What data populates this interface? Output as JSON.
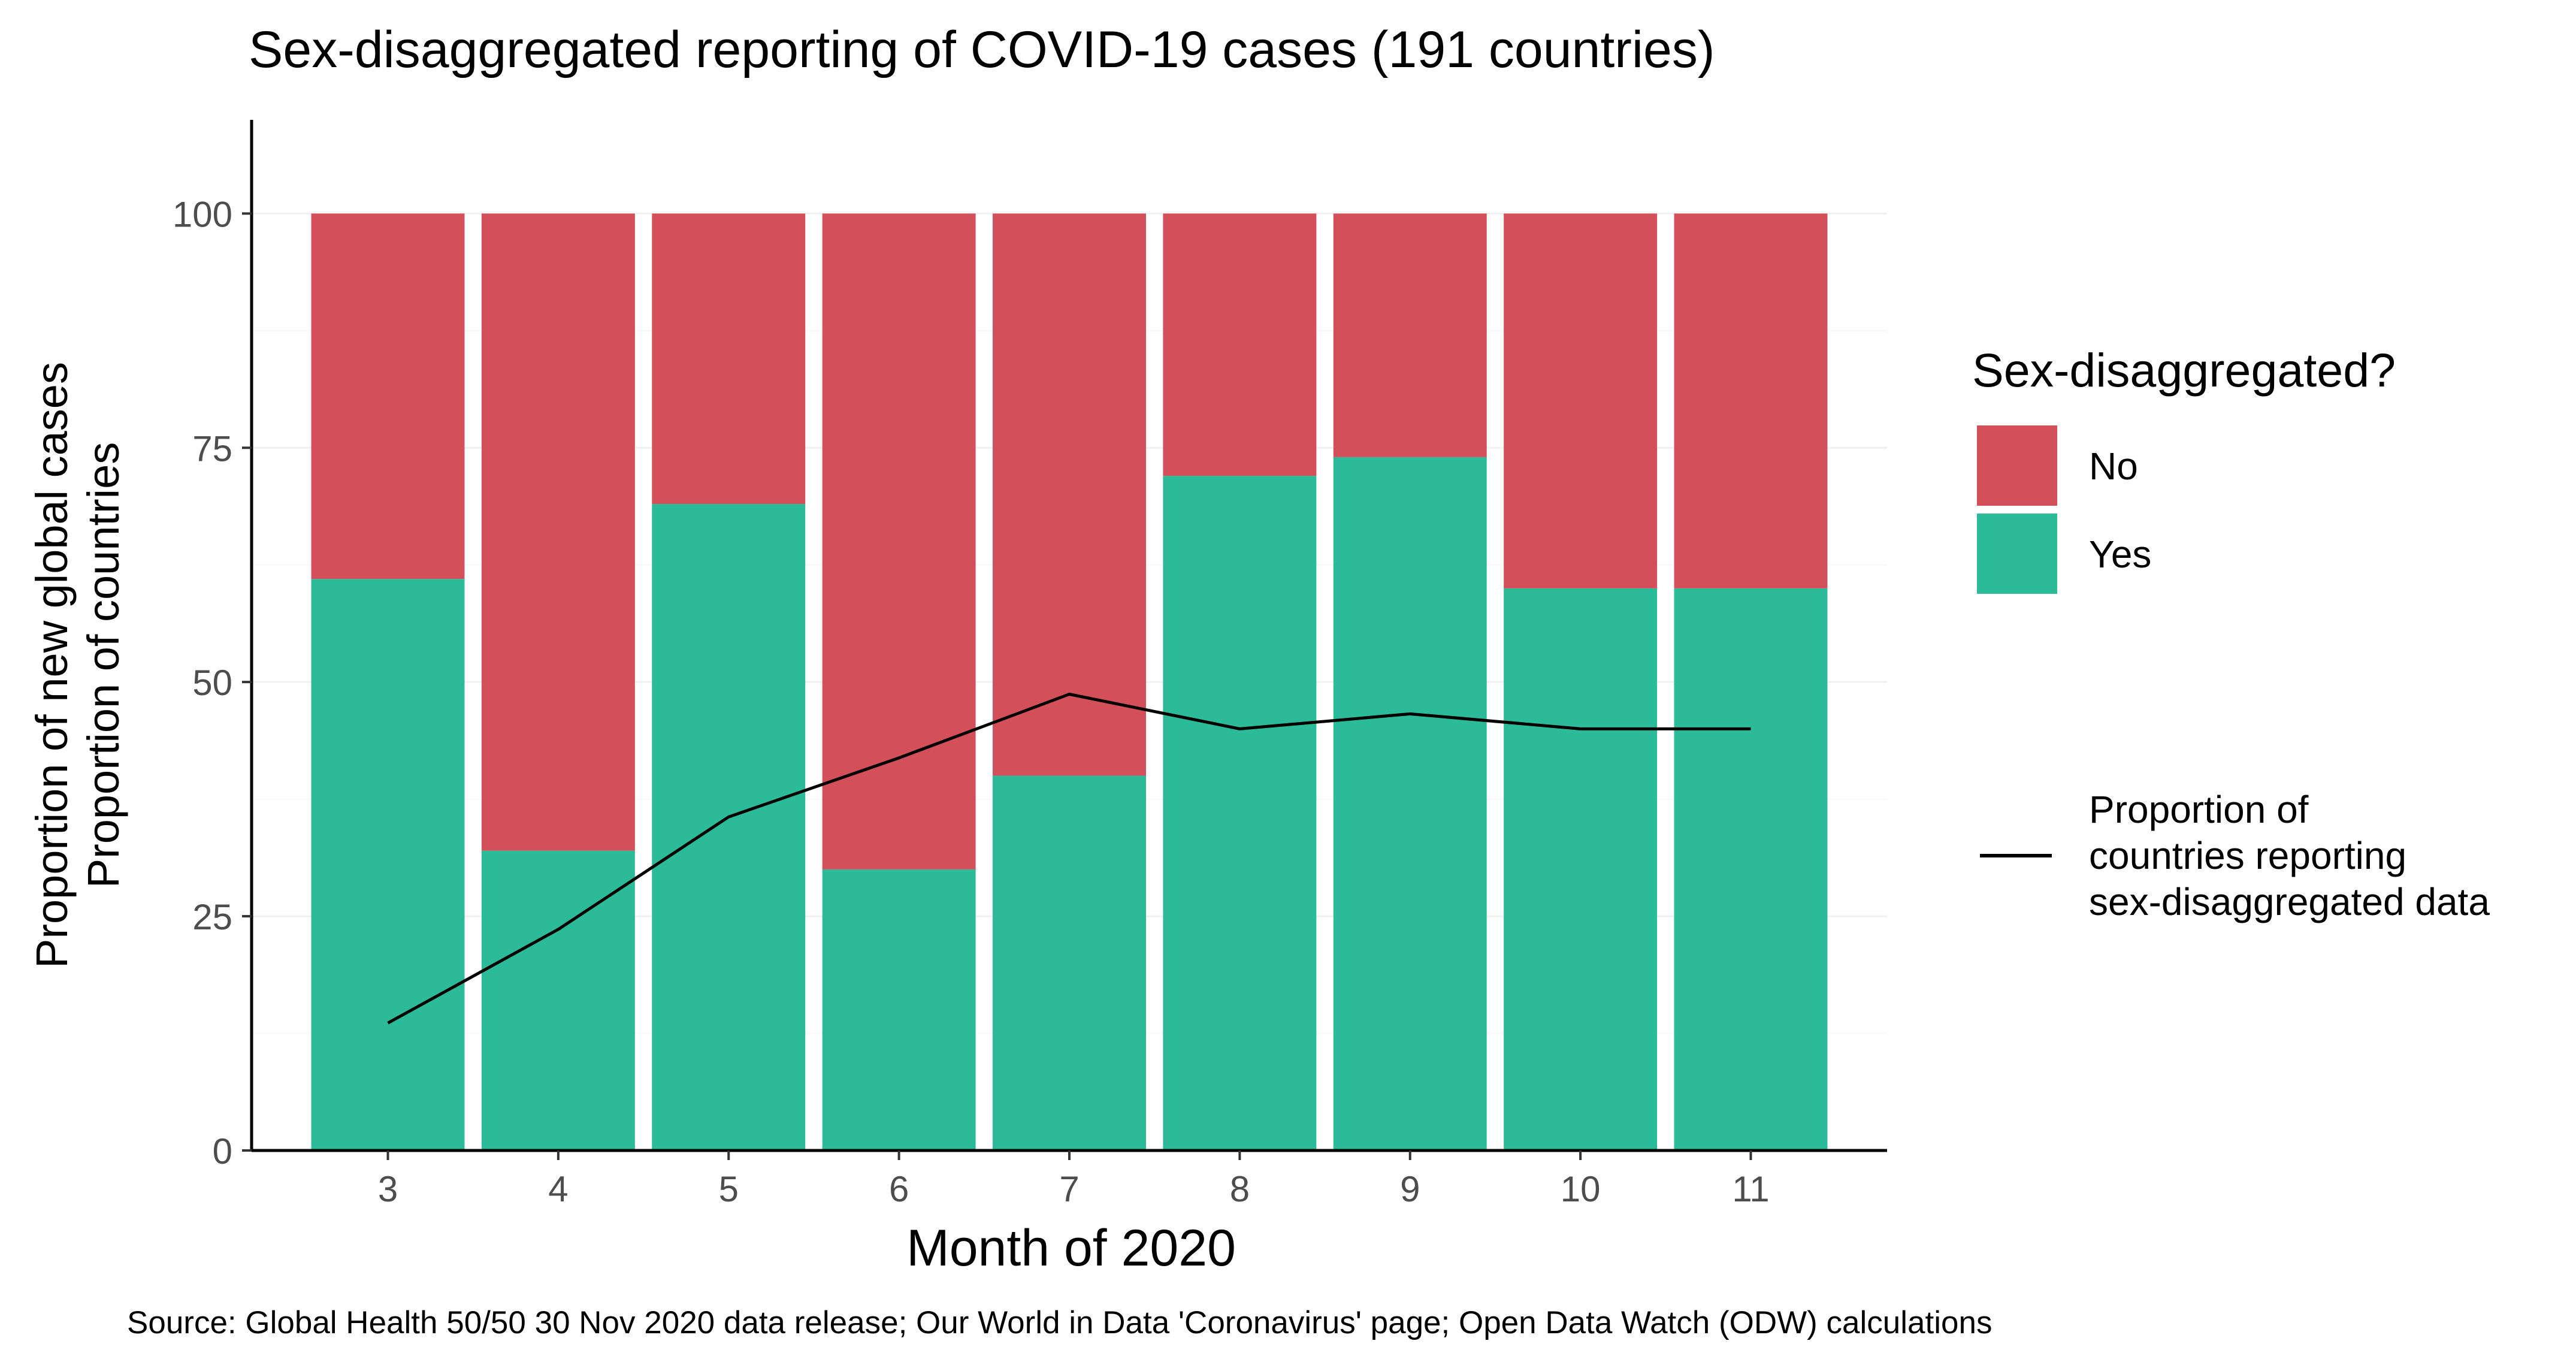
{
  "chart_data": {
    "type": "bar",
    "title": "Sex-disaggregated reporting of COVID-19 cases (191 countries)",
    "xlabel": "Month of 2020",
    "ylabel_lines": [
      "Proportion of new global cases",
      "Proportion of countries"
    ],
    "caption": "Source: Global Health 50/50 30 Nov 2020 data release; Our World in Data 'Coronavirus' page; Open Data Watch (ODW) calculations",
    "categories": [
      "3",
      "4",
      "5",
      "6",
      "7",
      "8",
      "9",
      "10",
      "11"
    ],
    "stacked": true,
    "ylim": [
      0,
      110
    ],
    "yticks": [
      "0",
      "25",
      "50",
      "75",
      "100"
    ],
    "grid": true,
    "legend_position": "right",
    "legend_title": "Sex-disaggregated?",
    "series": [
      {
        "name": "Yes",
        "color": "#2BBB99",
        "values": [
          61,
          32,
          69,
          30,
          40,
          72,
          74,
          60,
          60
        ]
      },
      {
        "name": "No",
        "color": "#D34F5A",
        "values": [
          39,
          68,
          31,
          70,
          60,
          28,
          26,
          40,
          40
        ]
      }
    ],
    "line": {
      "name": "Proportion of countries reporting sex-disaggregated data",
      "legend_lines": [
        "Proportion of",
        "countries reporting",
        "sex-disaggregated data"
      ],
      "color": "#000000",
      "values": [
        13.6,
        23.6,
        35.6,
        41.9,
        48.7,
        45.0,
        46.6,
        45.0,
        45.0
      ]
    }
  }
}
